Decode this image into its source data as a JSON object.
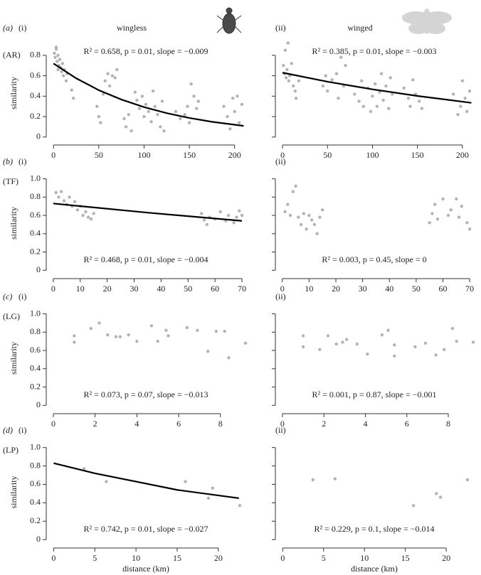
{
  "chart_data": [
    {
      "type": "scatter",
      "label": "(a)",
      "panel": "(i)",
      "group": "(AR)",
      "title": "wingless",
      "ylabel": "similarity",
      "annotation": "R² = 0.658, p = 0.01, slope = −0.009",
      "color": "#b3b3b3",
      "x": [
        1,
        2,
        3,
        4,
        5,
        6,
        7,
        8,
        9,
        10,
        11,
        12,
        14,
        15,
        3,
        5,
        20,
        22,
        48,
        50,
        52,
        55,
        57,
        60,
        62,
        65,
        68,
        70,
        78,
        80,
        83,
        86,
        90,
        92,
        95,
        98,
        100,
        102,
        105,
        108,
        110,
        112,
        115,
        118,
        120,
        122,
        135,
        140,
        145,
        148,
        150,
        152,
        155,
        158,
        160,
        188,
        192,
        195,
        198,
        200,
        203,
        205,
        208
      ],
      "y": [
        0.82,
        0.78,
        0.86,
        0.74,
        0.8,
        0.7,
        0.76,
        0.68,
        0.64,
        0.72,
        0.6,
        0.66,
        0.55,
        0.62,
        0.88,
        0.66,
        0.46,
        0.38,
        0.3,
        0.2,
        0.14,
        0.42,
        0.55,
        0.62,
        0.5,
        0.6,
        0.58,
        0.66,
        0.18,
        0.1,
        0.22,
        0.06,
        0.44,
        0.36,
        0.28,
        0.4,
        0.2,
        0.32,
        0.25,
        0.15,
        0.45,
        0.3,
        0.22,
        0.1,
        0.35,
        0.06,
        0.25,
        0.18,
        0.22,
        0.3,
        0.14,
        0.52,
        0.4,
        0.28,
        0.35,
        0.3,
        0.2,
        0.08,
        0.38,
        0.25,
        0.4,
        0.14,
        0.32
      ],
      "fit": {
        "x": [
          0,
          25,
          50,
          75,
          100,
          125,
          150,
          175,
          210
        ],
        "y": [
          0.72,
          0.575,
          0.459,
          0.367,
          0.293,
          0.234,
          0.187,
          0.149,
          0.109
        ],
        "color": "#000000"
      },
      "xlim": [
        -8,
        212
      ],
      "ylim": [
        -0.05,
        0.91
      ],
      "xticks": [
        0,
        50,
        100,
        150,
        200
      ],
      "yticks": [
        0,
        0.2,
        0.4,
        0.6,
        0.8
      ]
    },
    {
      "type": "scatter",
      "panel": "(ii)",
      "title": "winged",
      "annotation": "R² = 0.385, p = 0.01, slope = −0.003",
      "color": "#b3b3b3",
      "x": [
        1,
        2,
        3,
        4,
        5,
        6,
        7,
        8,
        10,
        12,
        14,
        15,
        18,
        45,
        48,
        50,
        55,
        60,
        62,
        65,
        68,
        70,
        80,
        85,
        88,
        90,
        95,
        98,
        100,
        103,
        105,
        108,
        110,
        112,
        115,
        118,
        120,
        122,
        135,
        140,
        142,
        145,
        148,
        152,
        155,
        190,
        195,
        198,
        200,
        203,
        205,
        208
      ],
      "y": [
        0.7,
        0.62,
        0.85,
        0.58,
        0.66,
        0.92,
        0.55,
        0.6,
        0.72,
        0.5,
        0.45,
        0.38,
        0.55,
        0.5,
        0.6,
        0.45,
        0.56,
        0.62,
        0.38,
        0.78,
        0.5,
        0.7,
        0.42,
        0.35,
        0.55,
        0.3,
        0.48,
        0.25,
        0.4,
        0.52,
        0.3,
        0.44,
        0.62,
        0.36,
        0.5,
        0.28,
        0.58,
        0.42,
        0.48,
        0.38,
        0.3,
        0.56,
        0.42,
        0.35,
        0.28,
        0.42,
        0.22,
        0.3,
        0.55,
        0.38,
        0.25,
        0.45
      ],
      "fit": {
        "x": [
          0,
          50,
          100,
          150,
          210
        ],
        "y": [
          0.63,
          0.542,
          0.467,
          0.402,
          0.335
        ],
        "color": "#000000"
      },
      "xlim": [
        -8,
        212
      ],
      "ylim": [
        -0.05,
        0.91
      ],
      "xticks": [
        0,
        50,
        100,
        150,
        200
      ],
      "yticks": [
        0,
        0.2,
        0.4,
        0.6,
        0.8
      ]
    },
    {
      "type": "scatter",
      "label": "(b)",
      "panel": "(i)",
      "group": "(TF)",
      "ylabel": "similarity",
      "annotation": "R² = 0.468, p = 0.01, slope = −0.004",
      "color": "#b3b3b3",
      "x": [
        1,
        2,
        3,
        4,
        5,
        6,
        7,
        8,
        9,
        10,
        11,
        12,
        13,
        14,
        15,
        55,
        56,
        57,
        58,
        60,
        62,
        64,
        65,
        67,
        68,
        69,
        70
      ],
      "y": [
        0.85,
        0.8,
        0.86,
        0.76,
        0.72,
        0.8,
        0.7,
        0.75,
        0.66,
        0.7,
        0.6,
        0.64,
        0.58,
        0.56,
        0.62,
        0.62,
        0.55,
        0.5,
        0.58,
        0.56,
        0.64,
        0.54,
        0.6,
        0.52,
        0.58,
        0.65,
        0.6
      ],
      "fit": {
        "x": [
          0,
          35,
          70
        ],
        "y": [
          0.73,
          0.63,
          0.54
        ],
        "color": "#000000"
      },
      "xlim": [
        -2.6,
        71.3
      ],
      "ylim": [
        -0.06,
        1.09
      ],
      "xticks": [
        0,
        10,
        20,
        30,
        40,
        50,
        60,
        70
      ],
      "yticks": [
        0,
        0.2,
        0.4,
        0.6,
        0.8,
        {
          "value": 1,
          "label": "1.0"
        }
      ]
    },
    {
      "type": "scatter",
      "panel": "(ii)",
      "annotation": "R² = 0.003, p = 0.45, slope = 0",
      "color": "#b3b3b3",
      "x": [
        1,
        2,
        3,
        4,
        5,
        6,
        7,
        8,
        9,
        10,
        11,
        12,
        13,
        14,
        15,
        55,
        56,
        57,
        58,
        60,
        62,
        63,
        65,
        66,
        67,
        69,
        70
      ],
      "y": [
        0.64,
        0.72,
        0.6,
        0.86,
        0.92,
        0.58,
        0.5,
        0.62,
        0.45,
        0.6,
        0.55,
        0.5,
        0.4,
        0.58,
        0.66,
        0.52,
        0.62,
        0.72,
        0.56,
        0.78,
        0.6,
        0.66,
        0.78,
        0.58,
        0.7,
        0.52,
        0.45
      ],
      "xlim": [
        -2.6,
        71.3
      ],
      "ylim": [
        -0.06,
        1.09
      ],
      "xticks": [
        0,
        10,
        20,
        30,
        40,
        50,
        60,
        70
      ],
      "yticks": [
        0,
        0.2,
        0.4,
        0.6,
        0.8,
        1
      ]
    },
    {
      "type": "scatter",
      "label": "(c)",
      "panel": "(i)",
      "group": "(LG)",
      "ylabel": "similarity",
      "annotation": "R² = 0.073, p =  0.07, slope = −0.013",
      "color": "#b3b3b3",
      "x": [
        1,
        1,
        1.8,
        2.2,
        2.6,
        3,
        3.2,
        3.6,
        4,
        4.7,
        5,
        5.4,
        5.5,
        6.4,
        6.9,
        7.4,
        7.8,
        8.2,
        8.4,
        9.2
      ],
      "y": [
        0.76,
        0.69,
        0.84,
        0.9,
        0.77,
        0.75,
        0.75,
        0.77,
        0.7,
        0.87,
        0.7,
        0.82,
        0.76,
        0.85,
        0.82,
        0.59,
        0.81,
        0.81,
        0.52,
        0.68
      ],
      "xlim": [
        -0.34,
        9.2
      ],
      "ylim": [
        -0.06,
        1.09
      ],
      "xticks": [
        0,
        2,
        4,
        6,
        8
      ],
      "yticks": [
        0,
        0.2,
        0.4,
        0.6,
        0.8,
        {
          "value": 1,
          "label": "1.0"
        }
      ]
    },
    {
      "type": "scatter",
      "panel": "(ii)",
      "annotation": "R² = 0.001, p =  0.87, slope = −0.001",
      "color": "#b3b3b3",
      "x": [
        1,
        1,
        1.8,
        2.2,
        2.6,
        2.9,
        3.1,
        3.6,
        4.1,
        4.8,
        5.1,
        5.4,
        5.4,
        6.4,
        6.9,
        7.4,
        7.8,
        8.2,
        8.4,
        9.2
      ],
      "y": [
        0.76,
        0.64,
        0.61,
        0.76,
        0.67,
        0.69,
        0.72,
        0.67,
        0.56,
        0.77,
        0.82,
        0.66,
        0.54,
        0.64,
        0.68,
        0.55,
        0.61,
        0.84,
        0.7,
        0.69
      ],
      "xlim": [
        -0.34,
        9.2
      ],
      "ylim": [
        -0.06,
        1.09
      ],
      "xticks": [
        0,
        2,
        4,
        6,
        8
      ],
      "yticks": [
        0,
        0.2,
        0.4,
        0.6,
        0.8,
        1
      ]
    },
    {
      "type": "scatter",
      "label": "(d)",
      "panel": "(i)",
      "group": "(LP)",
      "ylabel": "similarity",
      "xlabel": "distance (km)",
      "annotation": "R² = 0.742, p = 0.01, slope = −0.027",
      "color": "#b3b3b3",
      "x": [
        3.7,
        6.4,
        16,
        18.8,
        19.3,
        22.6
      ],
      "y": [
        0.77,
        0.63,
        0.63,
        0.45,
        0.56,
        0.37
      ],
      "fit": {
        "x": [
          0,
          5,
          10,
          15,
          22.5
        ],
        "y": [
          0.83,
          0.72,
          0.63,
          0.54,
          0.45
        ],
        "color": "#000000"
      },
      "xlim": [
        -0.9,
        23.3
      ],
      "ylim": [
        -0.06,
        1.09
      ],
      "xticks": [
        0,
        5,
        10,
        15,
        20
      ],
      "yticks": [
        0,
        0.2,
        0.4,
        0.6,
        0.8,
        {
          "value": 1,
          "label": "1.0"
        }
      ]
    },
    {
      "type": "scatter",
      "panel": "(ii)",
      "xlabel": "distance (km)",
      "annotation": "R² = 0.229, p = 0.1, slope = −0.014",
      "color": "#b3b3b3",
      "x": [
        3.7,
        6.4,
        16,
        18.8,
        19.3,
        22.6
      ],
      "y": [
        0.65,
        0.66,
        0.37,
        0.5,
        0.46,
        0.65
      ],
      "xlim": [
        -0.9,
        23.3
      ],
      "ylim": [
        -0.06,
        1.09
      ],
      "xticks": [
        0,
        5,
        10,
        15,
        20
      ],
      "yticks": [
        0,
        0.2,
        0.4,
        0.6,
        0.8,
        1
      ]
    }
  ]
}
